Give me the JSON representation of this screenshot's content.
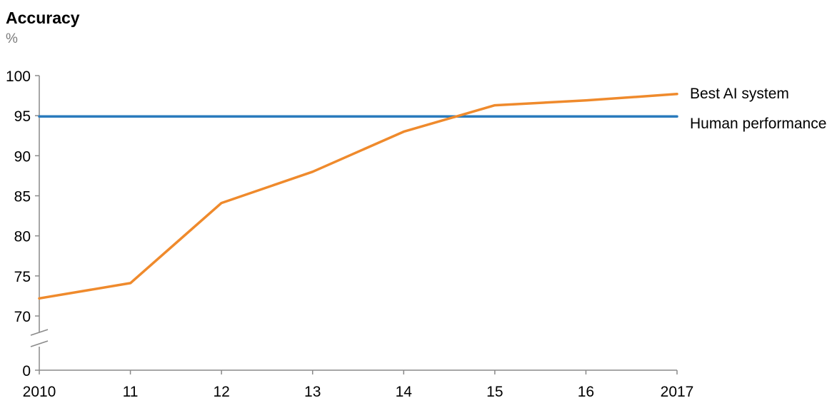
{
  "chart_data": {
    "type": "line",
    "title": "Accuracy",
    "ylabel": "%",
    "xlabel": "",
    "x": [
      2010,
      2011,
      2012,
      2013,
      2014,
      2015,
      2016,
      2017
    ],
    "x_tick_labels": [
      "2010",
      "11",
      "12",
      "13",
      "14",
      "15",
      "16",
      "2017"
    ],
    "y_ticks": [
      0,
      70,
      75,
      80,
      85,
      90,
      95,
      100
    ],
    "y_axis_break": true,
    "ylim": [
      70,
      100
    ],
    "grid": false,
    "legend_placement": "right, inline at line ends",
    "series": [
      {
        "name": "Best AI system",
        "color": "#ef8a2c",
        "values": [
          72.2,
          74.1,
          84.1,
          88.0,
          93.0,
          96.3,
          96.9,
          97.7
        ]
      },
      {
        "name": "Human performance",
        "color": "#2a7bbd",
        "values": [
          94.9,
          94.9,
          94.9,
          94.9,
          94.9,
          94.9,
          94.9,
          94.9
        ]
      }
    ]
  }
}
